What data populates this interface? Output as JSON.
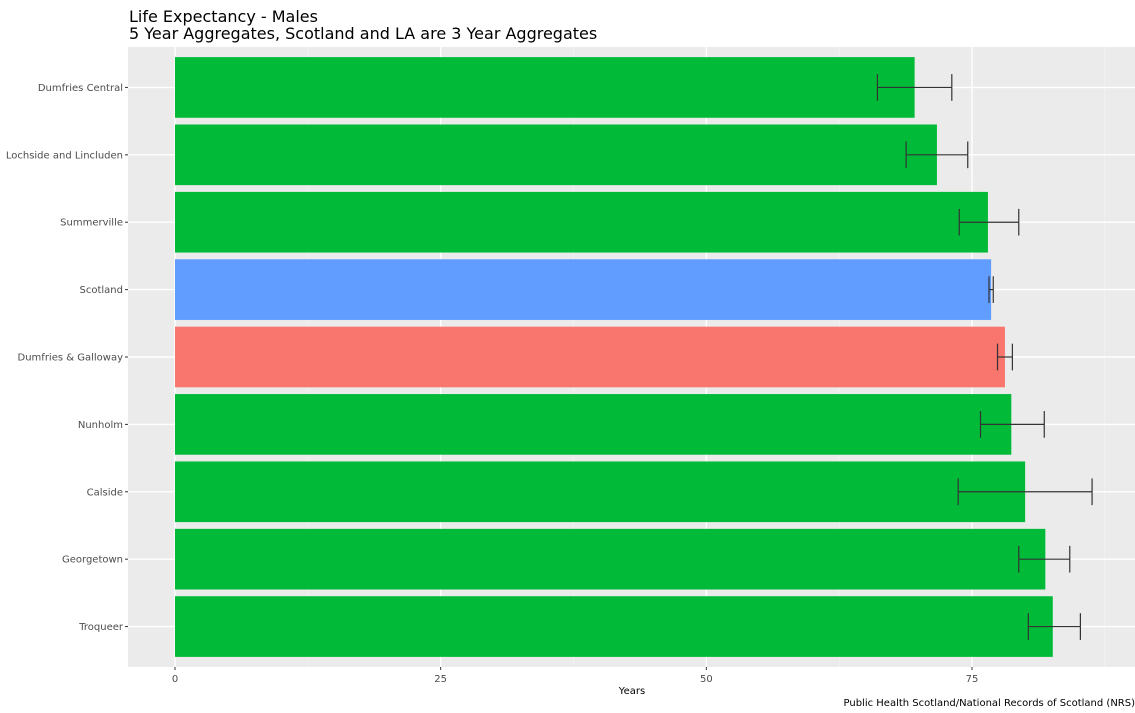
{
  "chart_data": {
    "type": "bar",
    "orientation": "horizontal",
    "title": "Life Expectancy - Males",
    "subtitle": "5 Year Aggregates, Scotland and LA are 3 Year Aggregates",
    "xlabel": "Years",
    "ylabel": "",
    "caption": "Public Health Scotland/National Records of Scotland (NRS)",
    "xlim": [
      0,
      90
    ],
    "xticks": [
      0,
      25,
      50,
      75
    ],
    "grid": true,
    "legend": "none",
    "categories": [
      "Dumfries Central",
      "Lochside and Lincluden",
      "Summerville",
      "Scotland",
      "Dumfries & Galloway",
      "Nunholm",
      "Calside",
      "Georgetown",
      "Troqueer"
    ],
    "values": [
      69.6,
      71.7,
      76.5,
      76.8,
      78.1,
      78.7,
      80.0,
      81.9,
      82.6
    ],
    "ci_lower": [
      66.1,
      68.8,
      73.8,
      76.6,
      77.4,
      75.8,
      73.7,
      79.4,
      80.3
    ],
    "ci_upper": [
      73.1,
      74.6,
      79.4,
      77.0,
      78.8,
      81.8,
      86.3,
      84.2,
      85.2
    ],
    "colors": [
      "#00BA38",
      "#00BA38",
      "#00BA38",
      "#619CFF",
      "#F8766D",
      "#00BA38",
      "#00BA38",
      "#00BA38",
      "#00BA38"
    ]
  }
}
